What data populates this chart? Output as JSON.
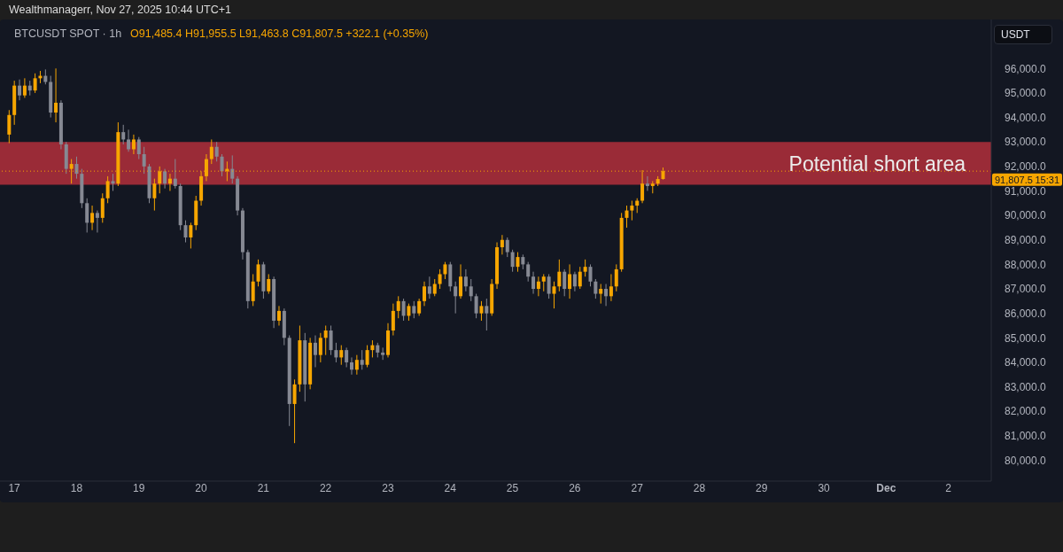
{
  "chart_data": {
    "type": "candlestick",
    "title": "BTCUSDT SPOT · 1h",
    "subtitle": "O91,485.4 H91,955.5 L91,463.8 C91,807.5 +322.1 (+0.35%)",
    "ylabel": "USDT",
    "annotations": [
      "Wealthmanagerr, Nov 27, 2025 10:44 UTC+1",
      "15:31"
    ],
    "x": [
      "2025-11-16T22:00",
      "2025-11-17T00:00",
      "2025-11-17T02:00",
      "2025-11-17T04:00",
      "2025-11-17T06:00",
      "2025-11-17T08:00",
      "2025-11-17T10:00",
      "2025-11-17T12:00",
      "2025-11-17T14:00",
      "2025-11-17T16:00",
      "2025-11-17T18:00",
      "2025-11-17T20:00",
      "2025-11-17T22:00",
      "2025-11-18T00:00",
      "2025-11-18T02:00",
      "2025-11-18T04:00",
      "2025-11-18T06:00",
      "2025-11-18T08:00",
      "2025-11-18T10:00",
      "2025-11-18T12:00",
      "2025-11-18T14:00",
      "2025-11-18T16:00",
      "2025-11-18T18:00",
      "2025-11-18T20:00",
      "2025-11-18T22:00",
      "2025-11-19T00:00",
      "2025-11-19T02:00",
      "2025-11-19T04:00",
      "2025-11-19T06:00",
      "2025-11-19T08:00",
      "2025-11-19T10:00",
      "2025-11-19T12:00",
      "2025-11-19T14:00",
      "2025-11-19T16:00",
      "2025-11-19T18:00",
      "2025-11-19T20:00",
      "2025-11-19T22:00",
      "2025-11-20T00:00",
      "2025-11-20T02:00",
      "2025-11-20T04:00",
      "2025-11-20T06:00",
      "2025-11-20T08:00",
      "2025-11-20T10:00",
      "2025-11-20T12:00",
      "2025-11-20T14:00",
      "2025-11-20T16:00",
      "2025-11-20T18:00",
      "2025-11-20T20:00",
      "2025-11-20T22:00",
      "2025-11-21T00:00",
      "2025-11-21T02:00",
      "2025-11-21T04:00",
      "2025-11-21T06:00",
      "2025-11-21T08:00",
      "2025-11-21T10:00",
      "2025-11-21T12:00",
      "2025-11-21T14:00",
      "2025-11-21T16:00",
      "2025-11-21T18:00",
      "2025-11-21T20:00",
      "2025-11-21T22:00",
      "2025-11-22T00:00",
      "2025-11-22T02:00",
      "2025-11-22T04:00",
      "2025-11-22T06:00",
      "2025-11-22T08:00",
      "2025-11-22T10:00",
      "2025-11-22T12:00",
      "2025-11-22T14:00",
      "2025-11-22T16:00",
      "2025-11-22T18:00",
      "2025-11-22T20:00",
      "2025-11-22T22:00",
      "2025-11-23T00:00",
      "2025-11-23T02:00",
      "2025-11-23T04:00",
      "2025-11-23T06:00",
      "2025-11-23T08:00",
      "2025-11-23T10:00",
      "2025-11-23T12:00",
      "2025-11-23T14:00",
      "2025-11-23T16:00",
      "2025-11-23T18:00",
      "2025-11-23T20:00",
      "2025-11-23T22:00",
      "2025-11-24T00:00",
      "2025-11-24T02:00",
      "2025-11-24T04:00",
      "2025-11-24T06:00",
      "2025-11-24T08:00",
      "2025-11-24T10:00",
      "2025-11-24T12:00",
      "2025-11-24T14:00",
      "2025-11-24T16:00",
      "2025-11-24T18:00",
      "2025-11-24T20:00",
      "2025-11-24T22:00",
      "2025-11-25T00:00",
      "2025-11-25T02:00",
      "2025-11-25T04:00",
      "2025-11-25T06:00",
      "2025-11-25T08:00",
      "2025-11-25T10:00",
      "2025-11-25T12:00",
      "2025-11-25T14:00",
      "2025-11-25T16:00",
      "2025-11-25T18:00",
      "2025-11-25T20:00",
      "2025-11-25T22:00",
      "2025-11-26T00:00",
      "2025-11-26T02:00",
      "2025-11-26T04:00",
      "2025-11-26T06:00",
      "2025-11-26T08:00",
      "2025-11-26T10:00",
      "2025-11-26T12:00",
      "2025-11-26T14:00",
      "2025-11-26T16:00",
      "2025-11-26T18:00",
      "2025-11-26T20:00",
      "2025-11-26T22:00",
      "2025-11-27T00:00",
      "2025-11-27T02:00",
      "2025-11-27T04:00",
      "2025-11-27T06:00",
      "2025-11-27T08:00",
      "2025-11-27T10:00"
    ],
    "ohlc": [
      [
        93300,
        94300,
        92950,
        94100
      ],
      [
        94100,
        95500,
        93700,
        95300
      ],
      [
        95300,
        95550,
        94700,
        94900
      ],
      [
        94900,
        95600,
        94800,
        95300
      ],
      [
        95300,
        95500,
        94900,
        95100
      ],
      [
        95100,
        95800,
        95000,
        95600
      ],
      [
        95600,
        95900,
        95400,
        95700
      ],
      [
        95700,
        95960,
        95350,
        95450
      ],
      [
        95450,
        95700,
        94000,
        94200
      ],
      [
        94200,
        96000,
        93800,
        94600
      ],
      [
        94600,
        94700,
        92700,
        92900
      ],
      [
        92900,
        93000,
        91700,
        91900
      ],
      [
        91900,
        92300,
        91300,
        92100
      ],
      [
        92100,
        92400,
        91500,
        91700
      ],
      [
        91700,
        91900,
        90300,
        90500
      ],
      [
        90500,
        90700,
        89300,
        89700
      ],
      [
        89700,
        90400,
        89400,
        90100
      ],
      [
        90100,
        90200,
        89300,
        89900
      ],
      [
        89900,
        90900,
        89700,
        90700
      ],
      [
        90700,
        91600,
        90500,
        91400
      ],
      [
        91400,
        91700,
        91000,
        91300
      ],
      [
        91300,
        93800,
        91200,
        93400
      ],
      [
        93400,
        93700,
        92900,
        93100
      ],
      [
        93100,
        93500,
        92600,
        92700
      ],
      [
        92700,
        93300,
        92500,
        93100
      ],
      [
        93100,
        93200,
        92300,
        92500
      ],
      [
        92500,
        92800,
        91700,
        92000
      ],
      [
        92000,
        92100,
        90500,
        90700
      ],
      [
        90700,
        91500,
        90200,
        91300
      ],
      [
        91300,
        92000,
        90900,
        91800
      ],
      [
        91800,
        91900,
        91100,
        91300
      ],
      [
        91300,
        91700,
        91000,
        91500
      ],
      [
        91500,
        92300,
        91100,
        91200
      ],
      [
        91200,
        91300,
        89400,
        89600
      ],
      [
        89600,
        89800,
        88900,
        89100
      ],
      [
        89100,
        89700,
        88650,
        89600
      ],
      [
        89600,
        90800,
        89400,
        90600
      ],
      [
        90600,
        91800,
        90400,
        91600
      ],
      [
        91600,
        92500,
        91400,
        92300
      ],
      [
        92300,
        93100,
        92100,
        92800
      ],
      [
        92800,
        93000,
        92200,
        92400
      ],
      [
        92400,
        92500,
        91600,
        91800
      ],
      [
        91800,
        92200,
        91400,
        91900
      ],
      [
        91900,
        92450,
        91300,
        91500
      ],
      [
        91500,
        91600,
        90000,
        90200
      ],
      [
        90200,
        90300,
        88200,
        88500
      ],
      [
        88500,
        88600,
        86200,
        86500
      ],
      [
        86500,
        87600,
        86300,
        87300
      ],
      [
        87300,
        88200,
        87100,
        88000
      ],
      [
        88000,
        88100,
        86600,
        86900
      ],
      [
        86900,
        87600,
        86800,
        87400
      ],
      [
        87400,
        87500,
        85400,
        85700
      ],
      [
        85700,
        86300,
        85500,
        86100
      ],
      [
        86100,
        86200,
        84700,
        85000
      ],
      [
        85000,
        85100,
        81400,
        82300
      ],
      [
        82300,
        83300,
        80700,
        83100
      ],
      [
        83100,
        85500,
        82800,
        84900
      ],
      [
        84900,
        85200,
        82400,
        83100
      ],
      [
        83100,
        85000,
        82900,
        84800
      ],
      [
        84800,
        85100,
        83800,
        84300
      ],
      [
        84300,
        85200,
        84000,
        85000
      ],
      [
        85000,
        85500,
        84300,
        85300
      ],
      [
        85300,
        85500,
        84300,
        84500
      ],
      [
        84500,
        84800,
        84000,
        84200
      ],
      [
        84200,
        84700,
        83900,
        84500
      ],
      [
        84500,
        84600,
        83800,
        84000
      ],
      [
        84000,
        84200,
        83500,
        83700
      ],
      [
        83700,
        84300,
        83500,
        84100
      ],
      [
        84100,
        84500,
        83700,
        83900
      ],
      [
        83900,
        84700,
        83800,
        84500
      ],
      [
        84500,
        84900,
        84200,
        84700
      ],
      [
        84700,
        84800,
        84200,
        84400
      ],
      [
        84400,
        84600,
        84100,
        84300
      ],
      [
        84300,
        85600,
        84200,
        85300
      ],
      [
        85300,
        86400,
        85100,
        86100
      ],
      [
        86100,
        86700,
        85800,
        86500
      ],
      [
        86500,
        86600,
        85700,
        85900
      ],
      [
        85900,
        86400,
        85700,
        86300
      ],
      [
        86300,
        86500,
        85800,
        86000
      ],
      [
        86000,
        86600,
        85900,
        86500
      ],
      [
        86500,
        87300,
        86300,
        87100
      ],
      [
        87100,
        87500,
        86600,
        86800
      ],
      [
        86800,
        87400,
        86700,
        87200
      ],
      [
        87200,
        87800,
        87000,
        87600
      ],
      [
        87600,
        88100,
        87400,
        88000
      ],
      [
        88000,
        88100,
        86900,
        87100
      ],
      [
        87100,
        87300,
        86000,
        86700
      ],
      [
        86700,
        88000,
        86600,
        87500
      ],
      [
        87500,
        87800,
        86900,
        87100
      ],
      [
        87100,
        87400,
        86500,
        86700
      ],
      [
        86700,
        86800,
        85800,
        86000
      ],
      [
        86000,
        86500,
        85700,
        86300
      ],
      [
        86300,
        86600,
        85300,
        86000
      ],
      [
        86000,
        87400,
        85900,
        87200
      ],
      [
        87200,
        88900,
        87000,
        88700
      ],
      [
        88700,
        89200,
        88400,
        89000
      ],
      [
        89000,
        89100,
        88300,
        88500
      ],
      [
        88500,
        88600,
        87700,
        87900
      ],
      [
        87900,
        88500,
        87700,
        88300
      ],
      [
        88300,
        88400,
        87800,
        88000
      ],
      [
        88000,
        88100,
        87300,
        87500
      ],
      [
        87500,
        87700,
        86800,
        87000
      ],
      [
        87000,
        87500,
        86700,
        87300
      ],
      [
        87300,
        87600,
        86900,
        87500
      ],
      [
        87500,
        87600,
        86600,
        86800
      ],
      [
        86800,
        87300,
        86200,
        87100
      ],
      [
        87100,
        88200,
        86900,
        87700
      ],
      [
        87700,
        87800,
        86700,
        87000
      ],
      [
        87000,
        88000,
        86600,
        87600
      ],
      [
        87600,
        87700,
        86900,
        87100
      ],
      [
        87100,
        87900,
        87000,
        87700
      ],
      [
        87700,
        88200,
        87500,
        87900
      ],
      [
        87900,
        88000,
        87100,
        87300
      ],
      [
        87300,
        87400,
        86600,
        86800
      ],
      [
        86800,
        87200,
        86400,
        87000
      ],
      [
        87000,
        87200,
        86300,
        86700
      ],
      [
        86700,
        87600,
        86500,
        87100
      ],
      [
        87100,
        88000,
        86900,
        87800
      ],
      [
        87800,
        90100,
        87700,
        89900
      ],
      [
        89900,
        90400,
        89500,
        90200
      ],
      [
        90200,
        90600,
        89800,
        90400
      ],
      [
        90400,
        90700,
        90100,
        90600
      ],
      [
        90600,
        91850,
        90500,
        91300
      ],
      [
        91300,
        91600,
        91000,
        91200
      ],
      [
        91200,
        91400,
        90900,
        91300
      ],
      [
        91300,
        91600,
        91200,
        91485.4
      ],
      [
        91485.4,
        91955.5,
        91463.8,
        91807.5
      ]
    ],
    "colors": [
      "#f7a600",
      "#f7a600",
      "#868993",
      "#f7a600",
      "#868993",
      "#f7a600",
      "#f7a600",
      "#868993",
      "#868993",
      "#f7a600",
      "#868993",
      "#868993",
      "#f7a600",
      "#868993",
      "#868993",
      "#868993",
      "#f7a600",
      "#868993",
      "#f7a600",
      "#f7a600",
      "#868993",
      "#f7a600",
      "#868993",
      "#868993",
      "#f7a600",
      "#868993",
      "#868993",
      "#868993",
      "#f7a600",
      "#f7a600",
      "#868993",
      "#f7a600",
      "#868993",
      "#868993",
      "#868993",
      "#f7a600",
      "#f7a600",
      "#f7a600",
      "#f7a600",
      "#f7a600",
      "#868993",
      "#868993",
      "#f7a600",
      "#868993",
      "#868993",
      "#868993",
      "#868993",
      "#f7a600",
      "#f7a600",
      "#868993",
      "#f7a600",
      "#868993",
      "#f7a600",
      "#868993",
      "#868993",
      "#f7a600",
      "#f7a600",
      "#868993",
      "#f7a600",
      "#868993",
      "#f7a600",
      "#f7a600",
      "#868993",
      "#868993",
      "#f7a600",
      "#868993",
      "#868993",
      "#f7a600",
      "#868993",
      "#f7a600",
      "#f7a600",
      "#868993",
      "#868993",
      "#f7a600",
      "#f7a600",
      "#f7a600",
      "#868993",
      "#f7a600",
      "#868993",
      "#f7a600",
      "#f7a600",
      "#868993",
      "#f7a600",
      "#f7a600",
      "#f7a600",
      "#868993",
      "#868993",
      "#f7a600",
      "#868993",
      "#868993",
      "#868993",
      "#f7a600",
      "#868993",
      "#f7a600",
      "#f7a600",
      "#f7a600",
      "#868993",
      "#868993",
      "#f7a600",
      "#868993",
      "#868993",
      "#868993",
      "#f7a600",
      "#f7a600",
      "#868993",
      "#f7a600",
      "#f7a600",
      "#868993",
      "#f7a600",
      "#868993",
      "#f7a600",
      "#f7a600",
      "#868993",
      "#868993",
      "#f7a600",
      "#868993",
      "#f7a600",
      "#f7a600",
      "#f7a600",
      "#f7a600",
      "#f7a600",
      "#f7a600",
      "#f7a600",
      "#868993",
      "#f7a600",
      "#f7a600",
      "#f7a600"
    ],
    "xlim": [
      "2025-11-16T18:30",
      "2025-12-02T16:30"
    ],
    "xticks": [
      {
        "value": "2025-11-17",
        "label": "17"
      },
      {
        "value": "2025-11-18",
        "label": "18"
      },
      {
        "value": "2025-11-19",
        "label": "19"
      },
      {
        "value": "2025-11-20",
        "label": "20"
      },
      {
        "value": "2025-11-21",
        "label": "21"
      },
      {
        "value": "2025-11-22",
        "label": "22"
      },
      {
        "value": "2025-11-23",
        "label": "23"
      },
      {
        "value": "2025-11-24",
        "label": "24"
      },
      {
        "value": "2025-11-25",
        "label": "25"
      },
      {
        "value": "2025-11-26",
        "label": "26"
      },
      {
        "value": "2025-11-27",
        "label": "27"
      },
      {
        "value": "2025-11-28",
        "label": "28"
      },
      {
        "value": "2025-11-29",
        "label": "29"
      },
      {
        "value": "2025-11-30",
        "label": "30"
      },
      {
        "value": "2025-12-01",
        "label": "Dec"
      },
      {
        "value": "2025-12-02",
        "label": "2"
      }
    ],
    "ylim": [
      79150,
      98000
    ],
    "yticks": [
      {
        "value": 80000,
        "label": "80,000.0"
      },
      {
        "value": 81000,
        "label": "81,000.0"
      },
      {
        "value": 82000,
        "label": "82,000.0"
      },
      {
        "value": 83000,
        "label": "83,000.0"
      },
      {
        "value": 84000,
        "label": "84,000.0"
      },
      {
        "value": 85000,
        "label": "85,000.0"
      },
      {
        "value": 86000,
        "label": "86,000.0"
      },
      {
        "value": 87000,
        "label": "87,000.0"
      },
      {
        "value": 88000,
        "label": "88,000.0"
      },
      {
        "value": 89000,
        "label": "89,000.0"
      },
      {
        "value": 90000,
        "label": "90,000.0"
      },
      {
        "value": 91000,
        "label": "91,000.0"
      },
      {
        "value": 92000,
        "label": "92,000.0"
      },
      {
        "value": 93000,
        "label": "93,000.0"
      },
      {
        "value": 94000,
        "label": "94,000.0"
      },
      {
        "value": 95000,
        "label": "95,000.0"
      },
      {
        "value": 96000,
        "label": "96,000.0"
      }
    ],
    "bands": [
      {
        "axis": "y",
        "from": 91250,
        "to": 93000,
        "label": "Potential short area",
        "color": "#9a2b37"
      }
    ],
    "ref_lines": [
      {
        "axis": "y",
        "value": 91807.5,
        "label": "91,807.5",
        "color": "#f7a600",
        "line_style": "dotted"
      }
    ]
  }
}
